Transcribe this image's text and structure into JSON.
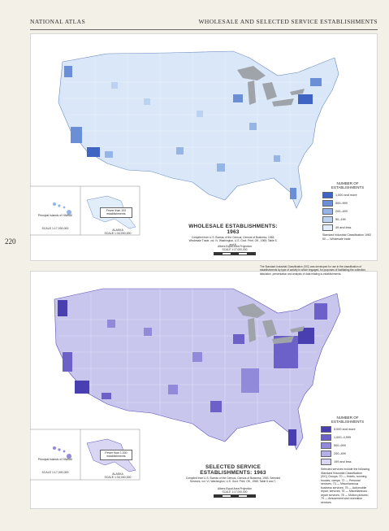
{
  "header": {
    "left": "NATIONAL ATLAS",
    "right": "WHOLESALE AND SELECTED SERVICE ESTABLISHMENTS"
  },
  "page_number": "220",
  "maps": {
    "wholesale": {
      "title": "WHOLESALE ESTABLISHMENTS: 1963",
      "source": "Compiled from U.S. Bureau of the Census, Census of Business, 1963, Wholesale Trade, vol. IV, Washington, U.S. Govt. Print. Off., 1965; Table 5, and 6.",
      "projection": "Albers Equal Area Projection",
      "scale": "SCALE 1:17,000,000",
      "legend_title": "NUMBER OF ESTABLISHMENTS",
      "legend": [
        {
          "label": "1,000 and more",
          "color": "#3f64c4"
        },
        {
          "label": "500–999",
          "color": "#6a8fd6"
        },
        {
          "label": "200–499",
          "color": "#95b5e6"
        },
        {
          "label": "50–199",
          "color": "#bcd2f1"
        },
        {
          "label": "49 and less",
          "color": "#e2edfa"
        }
      ],
      "legend_note": "Standard Industrial Classification 1963 50 — Wholesale trade",
      "inset_hawaii": "Principal Islands of HAWAII",
      "inset_hawaii_scale": "SCALE 1:17,000,000",
      "inset_alaska": "ALASKA",
      "inset_alaska_scale": "SCALE 1:34,000,000",
      "inset_alaska_box": "Fewer than 100 establishments",
      "colors": {
        "land": "#d9e7f8",
        "lakes": "#9fa3aa"
      }
    },
    "services": {
      "title": "SELECTED SERVICE ESTABLISHMENTS: 1963",
      "source": "Compiled from U.S. Bureau of the Census, Census of Business, 1963, Selected Services, vol. VI, Washington, U.S. Govt. Print. Off., 1965; Table 6 and 7.",
      "projection": "Albers Equal Area Projection",
      "scale": "SCALE 1:17,000,000",
      "legend_title": "NUMBER OF ESTABLISHMENTS",
      "legend": [
        {
          "label": "5,000 and more",
          "color": "#4a3fb0"
        },
        {
          "label": "1,000–4,999",
          "color": "#6c61c9"
        },
        {
          "label": "500–999",
          "color": "#9189da"
        },
        {
          "label": "200–499",
          "color": "#b6b0e8"
        },
        {
          "label": "199 and less",
          "color": "#d9d6f4"
        }
      ],
      "legend_note": "Selected services include the following Standard Industrial Classification (SIC) Groups: 70 — Hotels, rooming houses, camps; 72 — Personal services; 73 — Miscellaneous business services; 75 — Automobile repair, services; 76 — Miscellaneous repair services; 78 — Motion pictures; 79 — Amusement and recreation services",
      "side_note": "The Standard Industrial Classification (SIC) was developed for use in the classification of establishments by type of activity in which engaged, for purposes of facilitating the collection, tabulation, presentation and analysis of data relating to establishments.",
      "inset_hawaii": "Principal Islands of HAWAII",
      "inset_hawaii_scale": "SCALE 1:17,000,000",
      "inset_alaska": "ALASKA",
      "inset_alaska_scale": "SCALE 1:34,000,000",
      "inset_alaska_box": "Fewer than 1,000 establishments",
      "colors": {
        "land": "#c9c6ee",
        "lakes": "#9fa3aa"
      }
    }
  }
}
